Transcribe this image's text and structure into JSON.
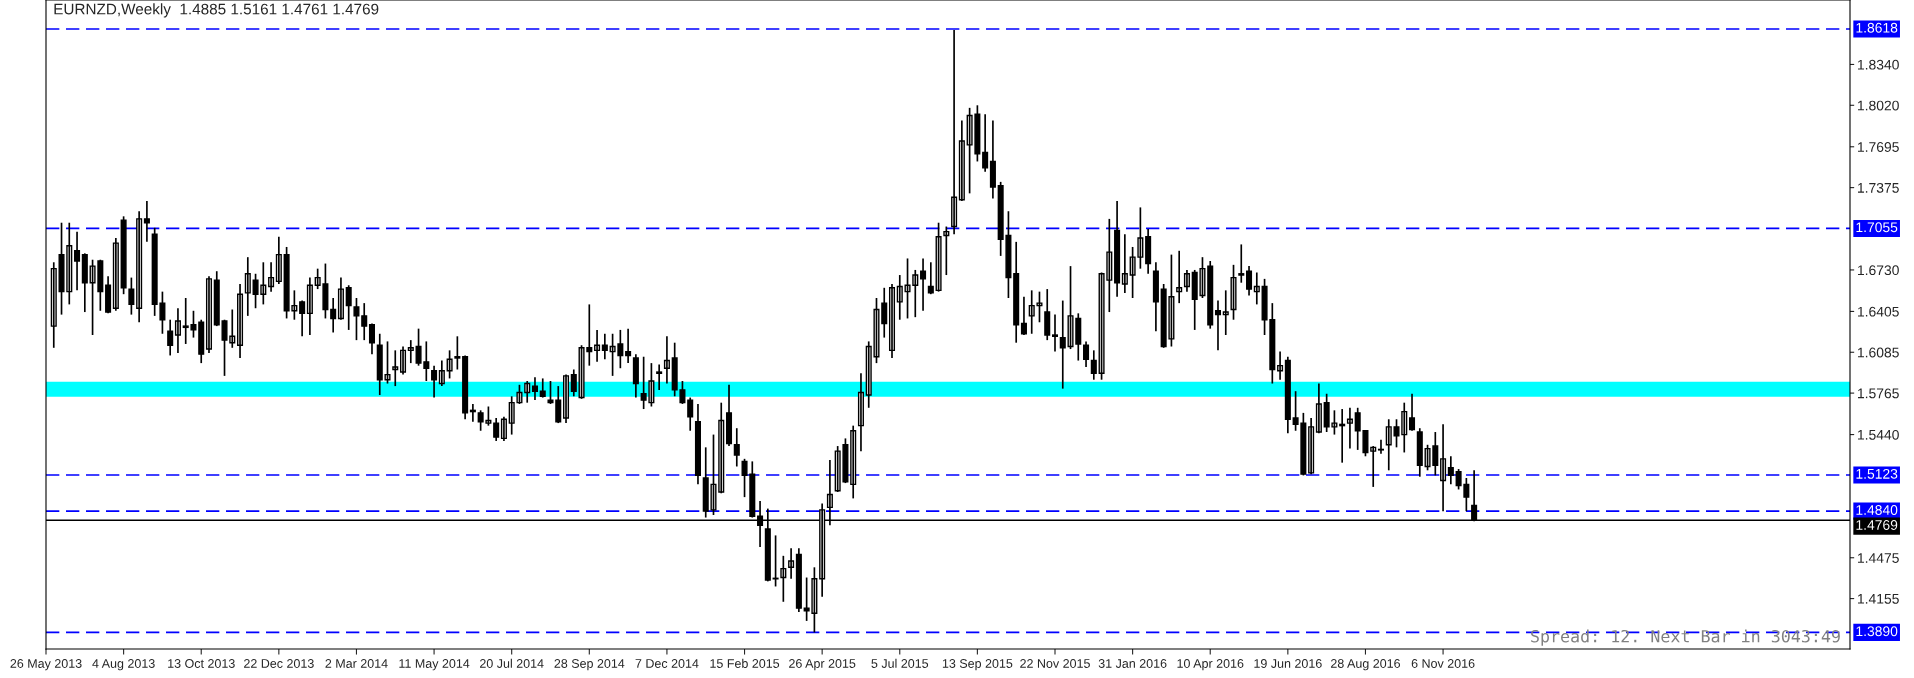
{
  "chart_data": {
    "type": "candlestick",
    "title": "EURNZD,Weekly  1.4885 1.5161 1.4761 1.4769",
    "annotations": [
      "Spread: 12. Next Bar in 3043:49"
    ],
    "x": [
      "2013-06-02",
      "2013-06-09",
      "2013-06-16",
      "2013-06-23",
      "2013-06-30",
      "2013-07-07",
      "2013-07-14",
      "2013-07-21",
      "2013-07-28",
      "2013-08-04",
      "2013-08-11",
      "2013-08-18",
      "2013-08-25",
      "2013-09-01",
      "2013-09-08",
      "2013-09-15",
      "2013-09-22",
      "2013-09-29",
      "2013-10-06",
      "2013-10-13",
      "2013-10-20",
      "2013-10-27",
      "2013-11-03",
      "2013-11-10",
      "2013-11-17",
      "2013-11-24",
      "2013-12-01",
      "2013-12-08",
      "2013-12-15",
      "2013-12-22",
      "2013-12-29",
      "2014-01-05",
      "2014-01-12",
      "2014-01-19",
      "2014-01-26",
      "2014-02-02",
      "2014-02-09",
      "2014-02-16",
      "2014-02-23",
      "2014-03-02",
      "2014-03-09",
      "2014-03-16",
      "2014-03-23",
      "2014-03-30",
      "2014-04-06",
      "2014-04-13",
      "2014-04-20",
      "2014-04-27",
      "2014-05-04",
      "2014-05-11",
      "2014-05-18",
      "2014-05-25",
      "2014-06-01",
      "2014-06-08",
      "2014-06-15",
      "2014-06-22",
      "2014-06-29",
      "2014-07-06",
      "2014-07-13",
      "2014-07-20",
      "2014-07-27",
      "2014-08-03",
      "2014-08-10",
      "2014-08-17",
      "2014-08-24",
      "2014-08-31",
      "2014-09-07",
      "2014-09-14",
      "2014-09-21",
      "2014-09-28",
      "2014-10-05",
      "2014-10-12",
      "2014-10-19",
      "2014-10-26",
      "2014-11-02",
      "2014-11-09",
      "2014-11-16",
      "2014-11-23",
      "2014-11-30",
      "2014-12-07",
      "2014-12-14",
      "2014-12-21",
      "2014-12-28",
      "2015-01-04",
      "2015-01-11",
      "2015-01-18",
      "2015-01-25",
      "2015-02-01",
      "2015-02-08",
      "2015-02-15",
      "2015-02-22",
      "2015-03-01",
      "2015-03-08",
      "2015-03-15",
      "2015-03-22",
      "2015-03-29",
      "2015-04-05",
      "2015-04-12",
      "2015-04-19",
      "2015-04-26",
      "2015-05-03",
      "2015-05-10",
      "2015-05-17",
      "2015-05-24",
      "2015-05-31",
      "2015-06-07",
      "2015-06-14",
      "2015-06-21",
      "2015-06-28",
      "2015-07-05",
      "2015-07-12",
      "2015-07-19",
      "2015-07-26",
      "2015-08-02",
      "2015-08-09",
      "2015-08-16",
      "2015-08-23",
      "2015-08-30",
      "2015-09-06",
      "2015-09-13",
      "2015-09-20",
      "2015-09-27",
      "2015-10-04",
      "2015-10-11",
      "2015-10-18",
      "2015-10-25",
      "2015-11-01",
      "2015-11-08",
      "2015-11-15",
      "2015-11-22",
      "2015-11-29",
      "2015-12-06",
      "2015-12-13",
      "2015-12-20",
      "2015-12-27",
      "2016-01-03",
      "2016-01-10",
      "2016-01-17",
      "2016-01-24",
      "2016-01-31",
      "2016-02-07",
      "2016-02-14",
      "2016-02-21",
      "2016-02-28",
      "2016-03-06",
      "2016-03-13",
      "2016-03-20",
      "2016-03-27",
      "2016-04-03",
      "2016-04-10",
      "2016-04-17",
      "2016-04-24",
      "2016-05-01",
      "2016-05-08",
      "2016-05-15",
      "2016-05-22",
      "2016-05-29",
      "2016-06-05",
      "2016-06-12",
      "2016-06-19",
      "2016-06-26",
      "2016-07-03",
      "2016-07-10",
      "2016-07-17",
      "2016-07-24",
      "2016-07-31",
      "2016-08-07",
      "2016-08-14",
      "2016-08-21",
      "2016-08-28",
      "2016-09-04",
      "2016-09-11",
      "2016-09-18",
      "2016-09-25",
      "2016-10-02",
      "2016-10-09",
      "2016-10-16",
      "2016-10-23",
      "2016-10-30",
      "2016-11-06",
      "2016-11-13",
      "2016-11-20",
      "2016-11-27",
      "2016-12-04"
    ],
    "series": [
      {
        "color": "#000000",
        "ohlc": [
          [
            1.629,
            1.679,
            1.612,
            1.674
          ],
          [
            1.685,
            1.71,
            1.638,
            1.656
          ],
          [
            1.656,
            1.71,
            1.646,
            1.692
          ],
          [
            1.688,
            1.703,
            1.657,
            1.68
          ],
          [
            1.685,
            1.686,
            1.64,
            1.663
          ],
          [
            1.663,
            1.681,
            1.622,
            1.676
          ],
          [
            1.68,
            1.681,
            1.641,
            1.656
          ],
          [
            1.661,
            1.668,
            1.639,
            1.64
          ],
          [
            1.643,
            1.698,
            1.641,
            1.694
          ],
          [
            1.712,
            1.715,
            1.654,
            1.659
          ],
          [
            1.658,
            1.667,
            1.638,
            1.646
          ],
          [
            1.643,
            1.719,
            1.632,
            1.713
          ],
          [
            1.713,
            1.727,
            1.695,
            1.71
          ],
          [
            1.701,
            1.706,
            1.637,
            1.646
          ],
          [
            1.647,
            1.656,
            1.623,
            1.634
          ],
          [
            1.625,
            1.634,
            1.606,
            1.614
          ],
          [
            1.622,
            1.643,
            1.608,
            1.633
          ],
          [
            1.628,
            1.651,
            1.615,
            1.629
          ],
          [
            1.63,
            1.641,
            1.62,
            1.626
          ],
          [
            1.632,
            1.634,
            1.6,
            1.607
          ],
          [
            1.611,
            1.668,
            1.608,
            1.666
          ],
          [
            1.665,
            1.672,
            1.629,
            1.63
          ],
          [
            1.633,
            1.634,
            1.59,
            1.618
          ],
          [
            1.616,
            1.642,
            1.612,
            1.621
          ],
          [
            1.614,
            1.662,
            1.604,
            1.654
          ],
          [
            1.655,
            1.683,
            1.637,
            1.67
          ],
          [
            1.665,
            1.67,
            1.643,
            1.654
          ],
          [
            1.654,
            1.679,
            1.646,
            1.661
          ],
          [
            1.66,
            1.679,
            1.656,
            1.667
          ],
          [
            1.664,
            1.699,
            1.662,
            1.685
          ],
          [
            1.685,
            1.691,
            1.635,
            1.641
          ],
          [
            1.641,
            1.657,
            1.634,
            1.645
          ],
          [
            1.648,
            1.649,
            1.621,
            1.639
          ],
          [
            1.639,
            1.667,
            1.622,
            1.661
          ],
          [
            1.661,
            1.674,
            1.658,
            1.667
          ],
          [
            1.662,
            1.678,
            1.635,
            1.642
          ],
          [
            1.642,
            1.651,
            1.624,
            1.635
          ],
          [
            1.635,
            1.667,
            1.634,
            1.658
          ],
          [
            1.659,
            1.661,
            1.626,
            1.645
          ],
          [
            1.644,
            1.651,
            1.618,
            1.637
          ],
          [
            1.637,
            1.647,
            1.618,
            1.629
          ],
          [
            1.63,
            1.631,
            1.607,
            1.616
          ],
          [
            1.614,
            1.623,
            1.575,
            1.587
          ],
          [
            1.587,
            1.617,
            1.584,
            1.591
          ],
          [
            1.595,
            1.61,
            1.582,
            1.597
          ],
          [
            1.593,
            1.613,
            1.591,
            1.61
          ],
          [
            1.61,
            1.618,
            1.6,
            1.612
          ],
          [
            1.613,
            1.627,
            1.598,
            1.6
          ],
          [
            1.601,
            1.617,
            1.586,
            1.596
          ],
          [
            1.594,
            1.598,
            1.573,
            1.587
          ],
          [
            1.584,
            1.602,
            1.582,
            1.594
          ],
          [
            1.594,
            1.61,
            1.588,
            1.603
          ],
          [
            1.604,
            1.621,
            1.595,
            1.605
          ],
          [
            1.605,
            1.606,
            1.556,
            1.561
          ],
          [
            1.562,
            1.568,
            1.554,
            1.563
          ],
          [
            1.561,
            1.563,
            1.547,
            1.554
          ],
          [
            1.553,
            1.566,
            1.551,
            1.555
          ],
          [
            1.553,
            1.557,
            1.539,
            1.542
          ],
          [
            1.541,
            1.558,
            1.539,
            1.556
          ],
          [
            1.553,
            1.574,
            1.544,
            1.569
          ],
          [
            1.569,
            1.583,
            1.568,
            1.577
          ],
          [
            1.577,
            1.586,
            1.569,
            1.584
          ],
          [
            1.582,
            1.589,
            1.571,
            1.578
          ],
          [
            1.578,
            1.588,
            1.573,
            1.574
          ],
          [
            1.571,
            1.586,
            1.568,
            1.569
          ],
          [
            1.571,
            1.582,
            1.553,
            1.554
          ],
          [
            1.557,
            1.591,
            1.553,
            1.59
          ],
          [
            1.591,
            1.595,
            1.574,
            1.578
          ],
          [
            1.573,
            1.614,
            1.572,
            1.612
          ],
          [
            1.612,
            1.646,
            1.598,
            1.609
          ],
          [
            1.61,
            1.626,
            1.601,
            1.614
          ],
          [
            1.614,
            1.623,
            1.603,
            1.61
          ],
          [
            1.609,
            1.623,
            1.59,
            1.613
          ],
          [
            1.615,
            1.626,
            1.596,
            1.606
          ],
          [
            1.609,
            1.627,
            1.6,
            1.606
          ],
          [
            1.604,
            1.607,
            1.573,
            1.584
          ],
          [
            1.576,
            1.605,
            1.564,
            1.571
          ],
          [
            1.569,
            1.6,
            1.566,
            1.586
          ],
          [
            1.592,
            1.599,
            1.579,
            1.593
          ],
          [
            1.596,
            1.621,
            1.584,
            1.602
          ],
          [
            1.604,
            1.616,
            1.574,
            1.579
          ],
          [
            1.579,
            1.586,
            1.568,
            1.569
          ],
          [
            1.571,
            1.573,
            1.547,
            1.558
          ],
          [
            1.554,
            1.568,
            1.505,
            1.512
          ],
          [
            1.51,
            1.534,
            1.479,
            1.484
          ],
          [
            1.485,
            1.544,
            1.481,
            1.505
          ],
          [
            1.499,
            1.569,
            1.498,
            1.555
          ],
          [
            1.561,
            1.583,
            1.535,
            1.537
          ],
          [
            1.536,
            1.549,
            1.519,
            1.528
          ],
          [
            1.523,
            1.525,
            1.495,
            1.512
          ],
          [
            1.513,
            1.523,
            1.479,
            1.48
          ],
          [
            1.48,
            1.492,
            1.456,
            1.473
          ],
          [
            1.47,
            1.486,
            1.429,
            1.43
          ],
          [
            1.431,
            1.465,
            1.425,
            1.431
          ],
          [
            1.432,
            1.449,
            1.413,
            1.439
          ],
          [
            1.44,
            1.455,
            1.431,
            1.445
          ],
          [
            1.45,
            1.455,
            1.405,
            1.408
          ],
          [
            1.408,
            1.432,
            1.398,
            1.406
          ],
          [
            1.404,
            1.44,
            1.389,
            1.431
          ],
          [
            1.431,
            1.49,
            1.417,
            1.485
          ],
          [
            1.487,
            1.524,
            1.473,
            1.497
          ],
          [
            1.5,
            1.535,
            1.499,
            1.531
          ],
          [
            1.536,
            1.541,
            1.506,
            1.507
          ],
          [
            1.505,
            1.551,
            1.494,
            1.547
          ],
          [
            1.551,
            1.592,
            1.531,
            1.577
          ],
          [
            1.575,
            1.617,
            1.565,
            1.613
          ],
          [
            1.605,
            1.651,
            1.6,
            1.642
          ],
          [
            1.647,
            1.659,
            1.62,
            1.631
          ],
          [
            1.61,
            1.662,
            1.604,
            1.659
          ],
          [
            1.648,
            1.669,
            1.634,
            1.66
          ],
          [
            1.656,
            1.682,
            1.635,
            1.661
          ],
          [
            1.661,
            1.673,
            1.636,
            1.669
          ],
          [
            1.672,
            1.682,
            1.641,
            1.666
          ],
          [
            1.66,
            1.679,
            1.654,
            1.655
          ],
          [
            1.657,
            1.71,
            1.656,
            1.699
          ],
          [
            1.7,
            1.707,
            1.669,
            1.703
          ],
          [
            1.707,
            1.861,
            1.701,
            1.73
          ],
          [
            1.728,
            1.79,
            1.727,
            1.774
          ],
          [
            1.771,
            1.8,
            1.733,
            1.794
          ],
          [
            1.795,
            1.802,
            1.758,
            1.764
          ],
          [
            1.765,
            1.795,
            1.75,
            1.753
          ],
          [
            1.758,
            1.79,
            1.729,
            1.738
          ],
          [
            1.739,
            1.742,
            1.684,
            1.697
          ],
          [
            1.7,
            1.719,
            1.651,
            1.667
          ],
          [
            1.67,
            1.695,
            1.616,
            1.63
          ],
          [
            1.631,
            1.652,
            1.622,
            1.623
          ],
          [
            1.637,
            1.657,
            1.623,
            1.645
          ],
          [
            1.645,
            1.656,
            1.632,
            1.647
          ],
          [
            1.64,
            1.658,
            1.618,
            1.622
          ],
          [
            1.622,
            1.638,
            1.609,
            1.621
          ],
          [
            1.62,
            1.649,
            1.58,
            1.612
          ],
          [
            1.613,
            1.676,
            1.611,
            1.637
          ],
          [
            1.635,
            1.639,
            1.602,
            1.615
          ],
          [
            1.614,
            1.617,
            1.597,
            1.603
          ],
          [
            1.602,
            1.61,
            1.587,
            1.592
          ],
          [
            1.592,
            1.671,
            1.587,
            1.67
          ],
          [
            1.665,
            1.713,
            1.64,
            1.687
          ],
          [
            1.704,
            1.727,
            1.652,
            1.663
          ],
          [
            1.662,
            1.701,
            1.655,
            1.67
          ],
          [
            1.669,
            1.691,
            1.651,
            1.683
          ],
          [
            1.683,
            1.722,
            1.674,
            1.698
          ],
          [
            1.699,
            1.705,
            1.67,
            1.678
          ],
          [
            1.672,
            1.679,
            1.625,
            1.648
          ],
          [
            1.658,
            1.662,
            1.612,
            1.613
          ],
          [
            1.619,
            1.685,
            1.613,
            1.652
          ],
          [
            1.656,
            1.688,
            1.647,
            1.659
          ],
          [
            1.66,
            1.673,
            1.656,
            1.67
          ],
          [
            1.671,
            1.673,
            1.626,
            1.65
          ],
          [
            1.653,
            1.683,
            1.651,
            1.674
          ],
          [
            1.676,
            1.68,
            1.627,
            1.63
          ],
          [
            1.641,
            1.649,
            1.61,
            1.638
          ],
          [
            1.638,
            1.657,
            1.622,
            1.64
          ],
          [
            1.642,
            1.677,
            1.634,
            1.667
          ],
          [
            1.669,
            1.693,
            1.663,
            1.67
          ],
          [
            1.672,
            1.676,
            1.653,
            1.658
          ],
          [
            1.656,
            1.671,
            1.646,
            1.66
          ],
          [
            1.66,
            1.666,
            1.622,
            1.634
          ],
          [
            1.634,
            1.647,
            1.584,
            1.595
          ],
          [
            1.594,
            1.609,
            1.587,
            1.598
          ],
          [
            1.602,
            1.605,
            1.545,
            1.556
          ],
          [
            1.557,
            1.578,
            1.547,
            1.552
          ],
          [
            1.553,
            1.561,
            1.512,
            1.513
          ],
          [
            1.514,
            1.557,
            1.513,
            1.55
          ],
          [
            1.546,
            1.584,
            1.545,
            1.568
          ],
          [
            1.569,
            1.576,
            1.546,
            1.55
          ],
          [
            1.55,
            1.563,
            1.544,
            1.553
          ],
          [
            1.552,
            1.564,
            1.522,
            1.551
          ],
          [
            1.553,
            1.565,
            1.533,
            1.556
          ],
          [
            1.561,
            1.565,
            1.532,
            1.547
          ],
          [
            1.547,
            1.547,
            1.527,
            1.53
          ],
          [
            1.531,
            1.535,
            1.503,
            1.534
          ],
          [
            1.532,
            1.54,
            1.529,
            1.532
          ],
          [
            1.536,
            1.556,
            1.516,
            1.55
          ],
          [
            1.55,
            1.556,
            1.534,
            1.543
          ],
          [
            1.544,
            1.569,
            1.53,
            1.562
          ],
          [
            1.557,
            1.576,
            1.547,
            1.548
          ],
          [
            1.546,
            1.549,
            1.511,
            1.52
          ],
          [
            1.519,
            1.536,
            1.516,
            1.533
          ],
          [
            1.535,
            1.546,
            1.512,
            1.52
          ],
          [
            1.508,
            1.552,
            1.484,
            1.525
          ],
          [
            1.518,
            1.527,
            1.505,
            1.512
          ],
          [
            1.515,
            1.517,
            1.501,
            1.504
          ],
          [
            1.505,
            1.51,
            1.484,
            1.495
          ],
          [
            1.4885,
            1.5161,
            1.4761,
            1.4769
          ]
        ]
      }
    ],
    "xlim": [
      "2013-05-26",
      "2017-11-08"
    ],
    "xticks": [
      {
        "value": "2013-05-26",
        "label": "26 May 2013"
      },
      {
        "value": "2013-08-04",
        "label": "4 Aug 2013"
      },
      {
        "value": "2013-10-13",
        "label": "13 Oct 2013"
      },
      {
        "value": "2013-12-22",
        "label": "22 Dec 2013"
      },
      {
        "value": "2014-03-02",
        "label": "2 Mar 2014"
      },
      {
        "value": "2014-05-11",
        "label": "11 May 2014"
      },
      {
        "value": "2014-07-20",
        "label": "20 Jul 2014"
      },
      {
        "value": "2014-09-28",
        "label": "28 Sep 2014"
      },
      {
        "value": "2014-12-07",
        "label": "7 Dec 2014"
      },
      {
        "value": "2015-02-15",
        "label": "15 Feb 2015"
      },
      {
        "value": "2015-04-26",
        "label": "26 Apr 2015"
      },
      {
        "value": "2015-07-05",
        "label": "5 Jul 2015"
      },
      {
        "value": "2015-09-13",
        "label": "13 Sep 2015"
      },
      {
        "value": "2015-11-22",
        "label": "22 Nov 2015"
      },
      {
        "value": "2016-01-31",
        "label": "31 Jan 2016"
      },
      {
        "value": "2016-04-10",
        "label": "10 Apr 2016"
      },
      {
        "value": "2016-06-19",
        "label": "19 Jun 2016"
      },
      {
        "value": "2016-08-28",
        "label": "28 Aug 2016"
      },
      {
        "value": "2016-11-06",
        "label": "6 Nov 2016"
      }
    ],
    "ylim": [
      1.376,
      1.8845
    ],
    "yticks": [
      {
        "value": 1.834,
        "label": "1.8340"
      },
      {
        "value": 1.802,
        "label": "1.8020"
      },
      {
        "value": 1.7695,
        "label": "1.7695"
      },
      {
        "value": 1.7375,
        "label": "1.7375"
      },
      {
        "value": 1.673,
        "label": "1.6730"
      },
      {
        "value": 1.6405,
        "label": "1.6405"
      },
      {
        "value": 1.6085,
        "label": "1.6085"
      },
      {
        "value": 1.5765,
        "label": "1.5765"
      },
      {
        "value": 1.544,
        "label": "1.5440"
      },
      {
        "value": 1.4475,
        "label": "1.4475"
      },
      {
        "value": 1.4155,
        "label": "1.4155"
      }
    ],
    "ref_lines": [
      {
        "axis": "y",
        "value": 1.8618,
        "label": "1.8618",
        "color": "#0000ff",
        "line_style": "dashed"
      },
      {
        "axis": "y",
        "value": 1.7055,
        "label": "1.7055",
        "color": "#0000ff",
        "line_style": "dashed"
      },
      {
        "axis": "y",
        "value": 1.5123,
        "label": "1.5123",
        "color": "#0000ff",
        "line_style": "dashed"
      },
      {
        "axis": "y",
        "value": 1.484,
        "label": "1.4840",
        "color": "#0000ff",
        "line_style": "dashed"
      },
      {
        "axis": "y",
        "value": 1.4769,
        "label": "1.4769",
        "color": "#000000",
        "line_style": "solid"
      },
      {
        "axis": "y",
        "value": 1.389,
        "label": "1.3890",
        "color": "#0000ff",
        "line_style": "dashed"
      }
    ],
    "bands": [
      {
        "axis": "y",
        "from": 1.5736,
        "to": 1.5854,
        "color": "#00ffff"
      }
    ],
    "grid": false,
    "legend": false
  }
}
